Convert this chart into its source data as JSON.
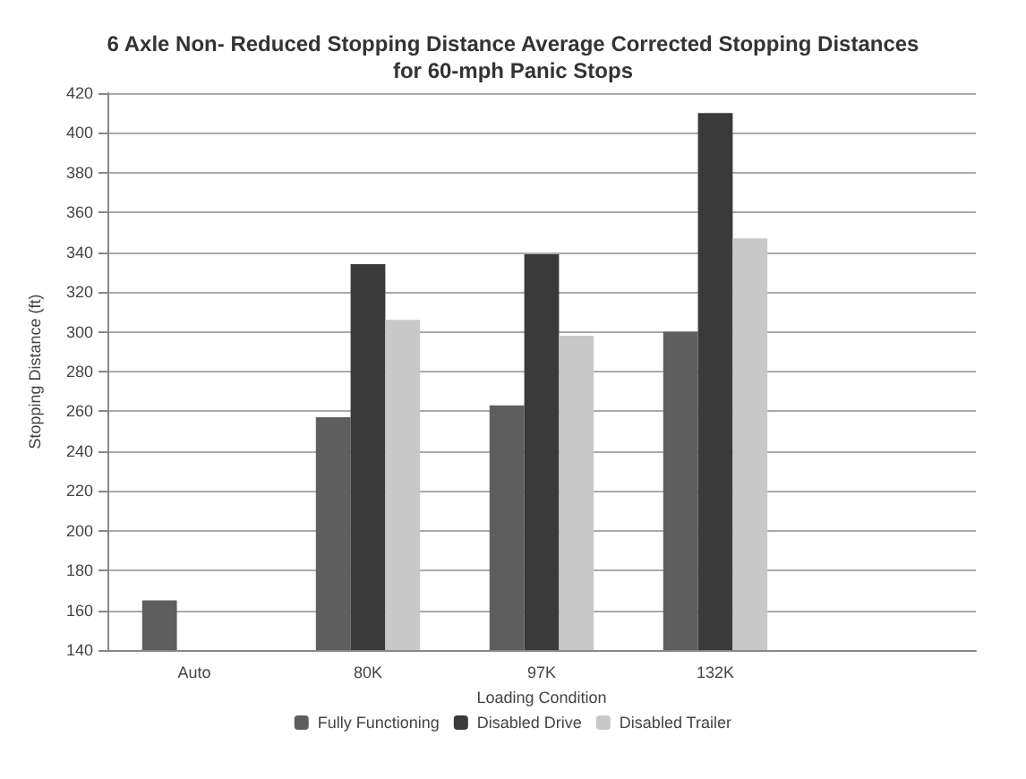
{
  "chart_data": {
    "type": "bar",
    "title": "6 Axle Non- Reduced Stopping Distance Average Corrected Stopping Distances\nfor 60-mph Panic Stops",
    "xlabel": "Loading Condition",
    "ylabel": "Stopping Distance (ft)",
    "categories": [
      "Auto",
      "80K",
      "97K",
      "132K",
      null
    ],
    "series": [
      {
        "name": "Fully Functioning",
        "color": "#5e5e5e",
        "values": [
          165,
          257,
          263,
          300,
          null
        ]
      },
      {
        "name": "Disabled Drive",
        "color": "#3a3a3a",
        "values": [
          null,
          334,
          339,
          410,
          null
        ]
      },
      {
        "name": "Disabled Trailer",
        "color": "#c8c8c8",
        "values": [
          null,
          306,
          298,
          347,
          null
        ]
      }
    ],
    "ylim": [
      140,
      420
    ],
    "yticks": [
      140,
      160,
      180,
      200,
      220,
      240,
      260,
      280,
      300,
      320,
      340,
      360,
      380,
      400,
      420
    ],
    "grid": "y",
    "legend": "bottom"
  }
}
